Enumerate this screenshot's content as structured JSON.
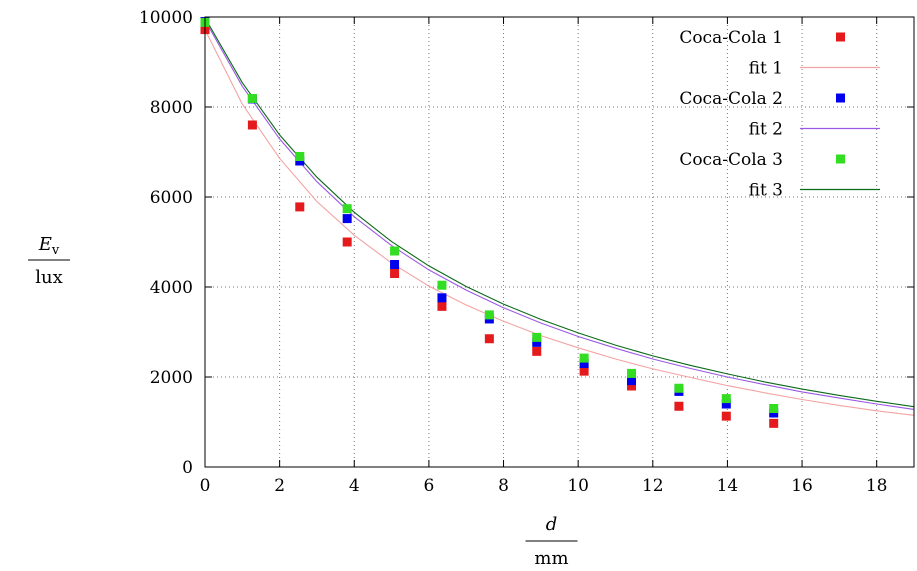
{
  "chart_data": {
    "type": "scatter",
    "xlabel": {
      "numerator": "d",
      "denominator": "mm"
    },
    "ylabel": {
      "numerator": "E",
      "subscript": "v",
      "denominator": "lux"
    },
    "xlim": [
      0,
      19
    ],
    "ylim": [
      0,
      10000
    ],
    "x_ticks": [
      0,
      2,
      4,
      6,
      8,
      10,
      12,
      14,
      16,
      18
    ],
    "y_ticks": [
      0,
      2000,
      4000,
      6000,
      8000,
      10000
    ],
    "grid": true,
    "legend_position": "top-right",
    "series": [
      {
        "name": "Coca-Cola 1",
        "kind": "points",
        "color": "#e41a1c",
        "x": [
          0,
          1.27,
          2.54,
          3.81,
          5.08,
          6.35,
          7.62,
          8.89,
          10.16,
          11.43,
          12.7,
          13.97,
          15.24
        ],
        "y": [
          9720,
          7600,
          5780,
          5000,
          4300,
          3570,
          2850,
          2570,
          2130,
          1800,
          1350,
          1130,
          970
        ]
      },
      {
        "name": "fit 1",
        "kind": "line",
        "color": "#f4a3a3",
        "x": [
          0,
          1,
          2,
          3,
          4,
          5,
          6,
          7,
          8,
          9,
          10,
          11,
          12,
          13,
          14,
          15,
          16,
          17,
          18,
          19
        ],
        "y": [
          9720,
          8065,
          6860,
          5900,
          5150,
          4530,
          4020,
          3600,
          3240,
          2920,
          2650,
          2400,
          2180,
          1990,
          1810,
          1650,
          1500,
          1370,
          1250,
          1150
        ]
      },
      {
        "name": "Coca-Cola 2",
        "kind": "points",
        "color": "#0000ee",
        "x": [
          0,
          1.27,
          2.54,
          3.81,
          5.08,
          6.35,
          7.62,
          8.89,
          10.16,
          11.43,
          12.7,
          13.97,
          15.24
        ],
        "y": [
          9900,
          8180,
          6800,
          5520,
          4500,
          3760,
          3290,
          2770,
          2300,
          1920,
          1680,
          1400,
          1200
        ]
      },
      {
        "name": "fit 2",
        "kind": "line",
        "color": "#9b59e6",
        "x": [
          0,
          1,
          2,
          3,
          4,
          5,
          6,
          7,
          8,
          9,
          10,
          11,
          12,
          13,
          14,
          15,
          16,
          17,
          18,
          19
        ],
        "y": [
          9930,
          8460,
          7290,
          6340,
          5560,
          4920,
          4380,
          3930,
          3540,
          3200,
          2900,
          2640,
          2400,
          2190,
          2000,
          1830,
          1670,
          1530,
          1400,
          1280
        ]
      },
      {
        "name": "Coca-Cola 3",
        "kind": "points",
        "color": "#33dd22",
        "x": [
          0,
          1.27,
          2.54,
          3.81,
          5.08,
          6.35,
          7.62,
          8.89,
          10.16,
          11.43,
          12.7,
          13.97,
          15.24
        ],
        "y": [
          9880,
          8190,
          6900,
          5740,
          4800,
          4040,
          3380,
          2880,
          2420,
          2080,
          1750,
          1520,
          1300
        ]
      },
      {
        "name": "fit 3",
        "kind": "line",
        "color": "#0b6a1a",
        "x": [
          0,
          1,
          2,
          3,
          4,
          5,
          6,
          7,
          8,
          9,
          10,
          11,
          12,
          13,
          14,
          15,
          16,
          17,
          18,
          19
        ],
        "y": [
          9980,
          8540,
          7380,
          6440,
          5660,
          5010,
          4470,
          4010,
          3620,
          3280,
          2980,
          2710,
          2470,
          2260,
          2070,
          1890,
          1730,
          1590,
          1460,
          1340
        ]
      }
    ]
  }
}
